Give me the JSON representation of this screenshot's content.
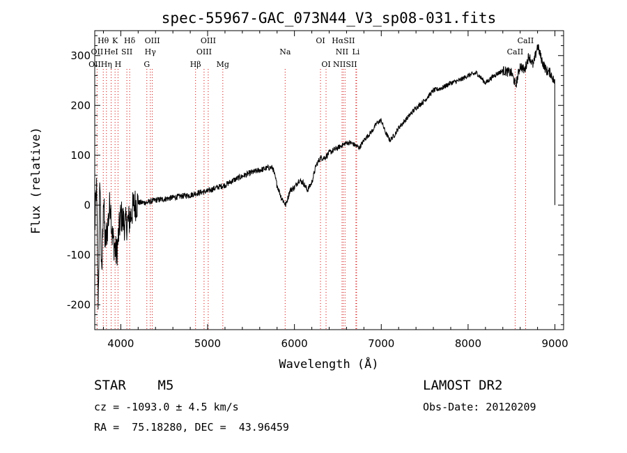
{
  "chart_data": {
    "type": "line",
    "title": "spec-55967-GAC_073N44_V3_sp08-031.fits",
    "xlabel": "Wavelength (Å)",
    "ylabel": "Flux (relative)",
    "xlim": [
      3700,
      9100
    ],
    "ylim": [
      -250,
      350
    ],
    "xticks": [
      4000,
      5000,
      6000,
      7000,
      8000,
      9000
    ],
    "yticks": [
      -200,
      -100,
      0,
      100,
      200,
      300
    ],
    "grid": false,
    "series": [
      {
        "name": "spectrum",
        "x": [
          3700,
          3720,
          3740,
          3760,
          3780,
          3800,
          3820,
          3850,
          3880,
          3900,
          3950,
          4000,
          4050,
          4100,
          4150,
          4200,
          4300,
          4400,
          4500,
          4600,
          4700,
          4800,
          4900,
          5000,
          5100,
          5200,
          5300,
          5400,
          5500,
          5600,
          5700,
          5750,
          5800,
          5850,
          5900,
          5950,
          6000,
          6050,
          6100,
          6150,
          6200,
          6250,
          6300,
          6350,
          6400,
          6450,
          6500,
          6550,
          6600,
          6650,
          6700,
          6750,
          6800,
          6850,
          6900,
          6950,
          7000,
          7050,
          7100,
          7150,
          7200,
          7300,
          7400,
          7500,
          7600,
          7700,
          7800,
          7900,
          8000,
          8100,
          8200,
          8300,
          8400,
          8500,
          8550,
          8600,
          8650,
          8700,
          8750,
          8800,
          8850,
          8900,
          8950,
          9000
        ],
        "y": [
          -50,
          40,
          -200,
          60,
          -160,
          20,
          -80,
          -40,
          10,
          -60,
          -100,
          -20,
          -40,
          -30,
          0,
          5,
          5,
          10,
          12,
          15,
          18,
          20,
          25,
          28,
          35,
          40,
          50,
          58,
          65,
          70,
          75,
          75,
          40,
          15,
          0,
          30,
          35,
          50,
          45,
          30,
          45,
          80,
          95,
          95,
          105,
          110,
          115,
          120,
          125,
          125,
          120,
          115,
          130,
          140,
          150,
          165,
          170,
          145,
          130,
          140,
          155,
          175,
          195,
          210,
          230,
          235,
          245,
          250,
          260,
          265,
          245,
          260,
          270,
          265,
          240,
          280,
          270,
          300,
          280,
          320,
          290,
          270,
          265,
          245
        ]
      }
    ],
    "line_markers": [
      {
        "label": "Hθ",
        "x": 3798,
        "row": 1
      },
      {
        "label": "K",
        "x": 3934,
        "row": 1
      },
      {
        "label": "Hδ",
        "x": 4102,
        "row": 1
      },
      {
        "label": "OIII",
        "x": 4363,
        "row": 1
      },
      {
        "label": "OIII",
        "x": 5007,
        "row": 1
      },
      {
        "label": "OI",
        "x": 6300,
        "row": 1
      },
      {
        "label": "HαSII",
        "x": 6563,
        "row": 1
      },
      {
        "label": "CaII",
        "x": 8662,
        "row": 1
      },
      {
        "label": "OII",
        "x": 3727,
        "row": 2
      },
      {
        "label": "HeI",
        "x": 3889,
        "row": 2
      },
      {
        "label": "SII",
        "x": 4070,
        "row": 2
      },
      {
        "label": "Hγ",
        "x": 4340,
        "row": 2
      },
      {
        "label": "OIII",
        "x": 4959,
        "row": 2
      },
      {
        "label": "Na",
        "x": 5893,
        "row": 2
      },
      {
        "label": "NII",
        "x": 6548,
        "row": 2
      },
      {
        "label": "Li",
        "x": 6708,
        "row": 2
      },
      {
        "label": "CaII",
        "x": 8542,
        "row": 2
      },
      {
        "label": "OII",
        "x": 3700,
        "row": 3
      },
      {
        "label": "Hη",
        "x": 3835,
        "row": 3
      },
      {
        "label": "H",
        "x": 3968,
        "row": 3
      },
      {
        "label": "G",
        "x": 4300,
        "row": 3
      },
      {
        "label": "Hβ",
        "x": 4861,
        "row": 3
      },
      {
        "label": "Mg",
        "x": 5175,
        "row": 3
      },
      {
        "label": "OI",
        "x": 6364,
        "row": 3
      },
      {
        "label": "NIISII",
        "x": 6583,
        "row": 3
      }
    ],
    "marker_lines": [
      3727,
      3798,
      3835,
      3889,
      3934,
      3968,
      4070,
      4102,
      4300,
      4340,
      4363,
      4861,
      4959,
      5007,
      5175,
      5893,
      6300,
      6364,
      6548,
      6563,
      6583,
      6708,
      6716,
      8542,
      8662
    ]
  },
  "info": {
    "object": "STAR    M5",
    "survey": "LAMOST DR2",
    "cz": "cz = -1093.0 ± 4.5 km/s",
    "obs_date": "Obs-Date: 20120209",
    "coords": "RA =  75.18280, DEC =  43.96459"
  }
}
